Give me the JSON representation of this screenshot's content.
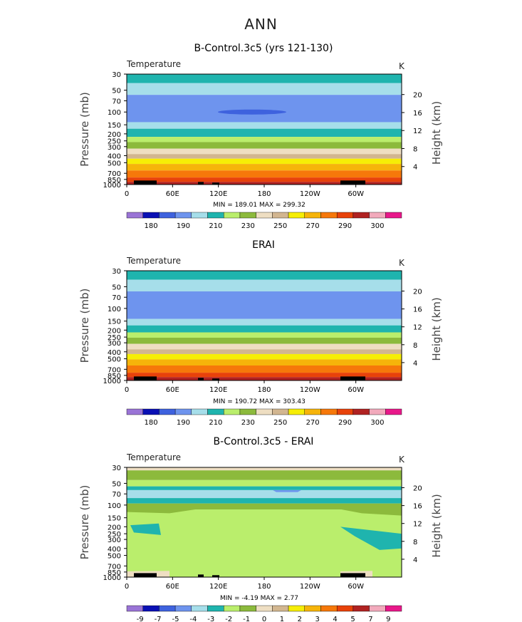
{
  "page_title": "ANN",
  "colors": {
    "contour_fill_scale": [
      "#9a74d6",
      "#0a10b4",
      "#3e62de",
      "#6e94ee",
      "#a6deea",
      "#1fb4ae",
      "#baee6c",
      "#8cba3c",
      "#eedec2",
      "#d2b690",
      "#f6ee06",
      "#f6b40a",
      "#f6780a",
      "#e8420a",
      "#b02222",
      "#f2aabc",
      "#e8188a"
    ],
    "coastline": "#000000"
  },
  "axis_labels": {
    "x_ticks": [
      "0",
      "60E",
      "120E",
      "180",
      "120W",
      "60W"
    ],
    "y_left_ticks": [
      "30",
      "50",
      "70",
      "100",
      "150",
      "200",
      "250",
      "300",
      "400",
      "500",
      "700",
      "850",
      "1000"
    ],
    "y_right_ticks": [
      "20",
      "16",
      "12",
      "8",
      "4"
    ],
    "y_left_title": "Pressure  (mb)",
    "y_right_title": "Height  (km)",
    "variable": "Temperature",
    "units": "K"
  },
  "chart_data": [
    {
      "type": "heatmap",
      "title": "B-Control.3c5 (yrs 121-130)",
      "variable": "Temperature",
      "units": "K",
      "stats": "MIN =  189.01   MAX =  299.32",
      "legend_labels": [
        "180",
        "190",
        "210",
        "230",
        "250",
        "270",
        "290",
        "300"
      ],
      "ylim_mb": [
        1000,
        30
      ],
      "bands": [
        {
          "from": 30,
          "to": 40,
          "color_index": 5
        },
        {
          "from": 40,
          "to": 58,
          "color_index": 4
        },
        {
          "from": 58,
          "to": 138,
          "color_index": 3
        },
        {
          "from": 138,
          "to": 170,
          "color_index": 4
        },
        {
          "from": 170,
          "to": 220,
          "color_index": 5
        },
        {
          "from": 220,
          "to": 260,
          "color_index": 6
        },
        {
          "from": 260,
          "to": 320,
          "color_index": 7
        },
        {
          "from": 320,
          "to": 380,
          "color_index": 8
        },
        {
          "from": 380,
          "to": 440,
          "color_index": 9
        },
        {
          "from": 440,
          "to": 520,
          "color_index": 10
        },
        {
          "from": 520,
          "to": 640,
          "color_index": 11
        },
        {
          "from": 640,
          "to": 800,
          "color_index": 12
        },
        {
          "from": 800,
          "to": 920,
          "color_index": 13
        },
        {
          "from": 920,
          "to": 1000,
          "color_index": 14
        }
      ]
    },
    {
      "type": "heatmap",
      "title": "ERAI",
      "variable": "Temperature",
      "units": "K",
      "stats": "MIN =  190.72   MAX =  303.43",
      "legend_labels": [
        "180",
        "190",
        "210",
        "230",
        "250",
        "270",
        "290",
        "300"
      ],
      "ylim_mb": [
        1000,
        30
      ],
      "bands": [
        {
          "from": 30,
          "to": 40,
          "color_index": 5
        },
        {
          "from": 40,
          "to": 58,
          "color_index": 4
        },
        {
          "from": 58,
          "to": 140,
          "color_index": 3
        },
        {
          "from": 140,
          "to": 172,
          "color_index": 4
        },
        {
          "from": 172,
          "to": 215,
          "color_index": 5
        },
        {
          "from": 215,
          "to": 255,
          "color_index": 6
        },
        {
          "from": 255,
          "to": 310,
          "color_index": 7
        },
        {
          "from": 310,
          "to": 370,
          "color_index": 8
        },
        {
          "from": 370,
          "to": 430,
          "color_index": 9
        },
        {
          "from": 430,
          "to": 510,
          "color_index": 10
        },
        {
          "from": 510,
          "to": 620,
          "color_index": 11
        },
        {
          "from": 620,
          "to": 780,
          "color_index": 12
        },
        {
          "from": 780,
          "to": 900,
          "color_index": 13
        },
        {
          "from": 900,
          "to": 1000,
          "color_index": 14
        }
      ]
    },
    {
      "type": "heatmap",
      "title": "B-Control.3c5 - ERAI",
      "variable": "Temperature",
      "units": "K",
      "stats": "MIN =   -4.19   MAX =    2.77",
      "legend_labels": [
        "-9",
        "-7",
        "-5",
        "-4",
        "-3",
        "-2",
        "-1",
        "0",
        "1",
        "2",
        "3",
        "4",
        "5",
        "7",
        "9"
      ],
      "ylim_mb": [
        1000,
        30
      ],
      "bands": [
        {
          "from": 30,
          "to": 33,
          "color_index": 8
        },
        {
          "from": 33,
          "to": 45,
          "color_index": 7
        },
        {
          "from": 45,
          "to": 55,
          "color_index": 6
        },
        {
          "from": 55,
          "to": 62,
          "color_index": 5
        },
        {
          "from": 62,
          "to": 80,
          "color_index": 4
        },
        {
          "from": 80,
          "to": 95,
          "color_index": 5
        },
        {
          "from": 95,
          "to": 115,
          "color_index": 7
        },
        {
          "from": 115,
          "to": 1000,
          "color_index": 6
        }
      ]
    }
  ]
}
